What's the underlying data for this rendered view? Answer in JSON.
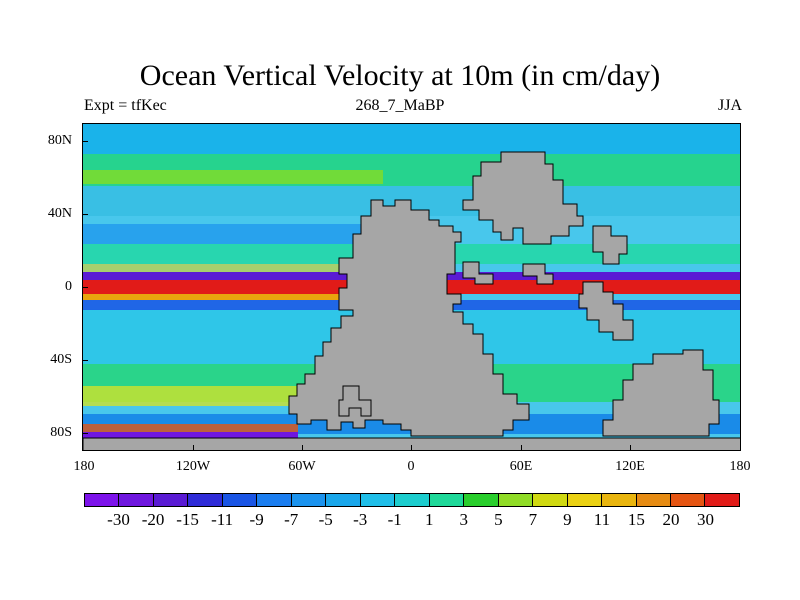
{
  "header": {
    "title": "Ocean Vertical Velocity at 10m (in cm/day)",
    "left_label": "Expt = tfKec",
    "center_label": "268_7_MaBP",
    "right_label": "JJA"
  },
  "axes": {
    "lat_ticks": [
      "80N",
      "40N",
      "0",
      "40S",
      "80S"
    ],
    "lon_ticks": [
      "180",
      "120W",
      "60W",
      "0",
      "60E",
      "120E",
      "180"
    ]
  },
  "colors": {
    "land": "#a6a6a6",
    "ocean_background": "#48c7ec",
    "colorbar": [
      "#7d13eb",
      "#6f17df",
      "#5a1bd4",
      "#2f2cd8",
      "#1a55e5",
      "#1b7ef0",
      "#1b93ee",
      "#1aa7eb",
      "#1fbee8",
      "#1ccdce",
      "#1ed899",
      "#29ce2c",
      "#90dc26",
      "#d0d911",
      "#ead113",
      "#e9b50e",
      "#e68b12",
      "#e55512",
      "#e11b18"
    ]
  },
  "colorbar": {
    "labels": [
      "-30",
      "-20",
      "-15",
      "-11",
      "-9",
      "-7",
      "-5",
      "-3",
      "-1",
      "1",
      "3",
      "5",
      "7",
      "9",
      "11",
      "15",
      "20",
      "30"
    ]
  }
}
